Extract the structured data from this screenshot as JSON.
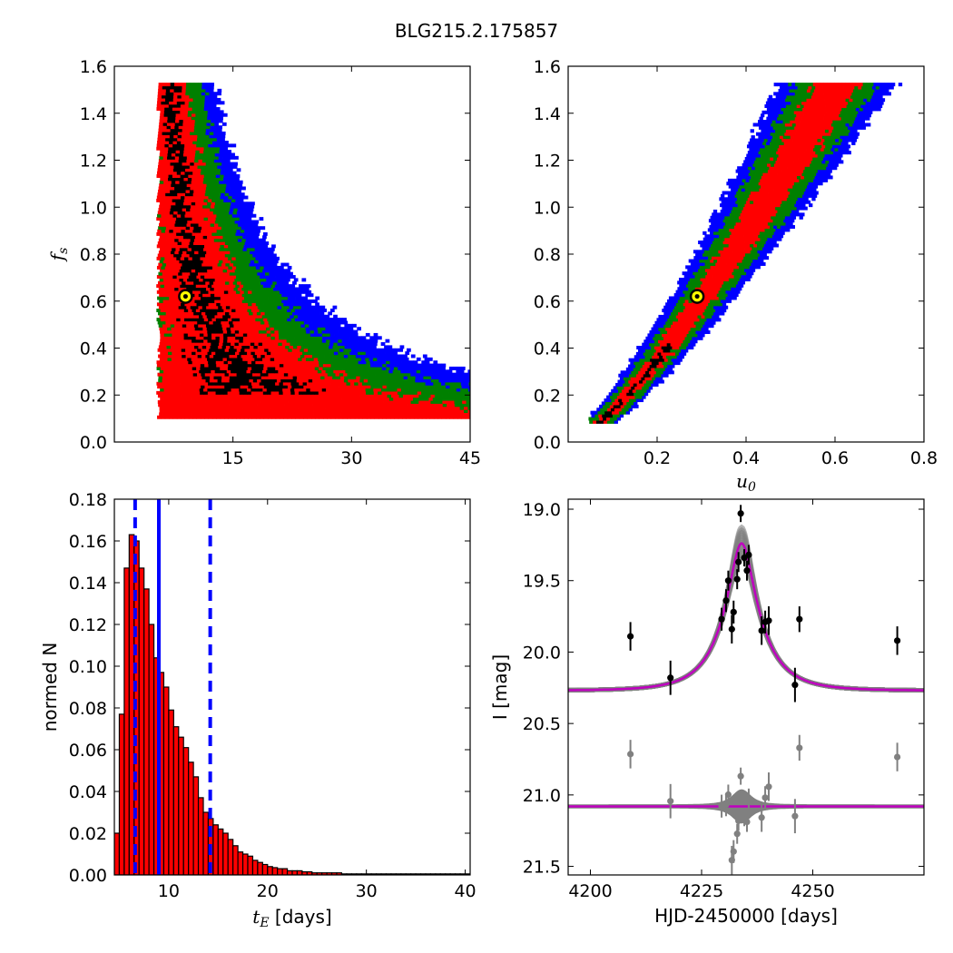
{
  "title": "BLG215.2.175857",
  "colors": {
    "sigma3": "#0000ff",
    "sigma2": "#008000",
    "sigma1": "#ff0000",
    "best": "#000000",
    "marker_fill": "#ffff00",
    "hist_bar": "#ff0000",
    "hist_edge": "#000000",
    "vline": "#0000ff",
    "data": "#000000",
    "resid": "#808080",
    "model_band": "#808080",
    "model_line": "#bf00bf"
  },
  "chart_data": [
    {
      "id": "tE_fs",
      "type": "heatmap",
      "xlabel": "",
      "ylabel": "f_s",
      "xlim": [
        0,
        45
      ],
      "ylim": [
        0,
        1.6
      ],
      "xticks": [
        15,
        30,
        45
      ],
      "yticks": [
        0.0,
        0.2,
        0.4,
        0.6,
        0.8,
        1.0,
        1.2,
        1.4,
        1.6
      ],
      "curve": "tE = 5.0 * fs^-0.5 (approx)",
      "fs_range": [
        0.1,
        1.53
      ],
      "best_fit": {
        "x": 9.0,
        "y": 0.62
      },
      "contour_levels": [
        "1-sigma",
        "2-sigma",
        "3-sigma"
      ]
    },
    {
      "id": "u0_fs",
      "type": "heatmap",
      "xlabel": "u_0",
      "ylabel": "",
      "xlim": [
        0,
        0.8
      ],
      "ylim": [
        0,
        1.6
      ],
      "xticks": [
        0.2,
        0.4,
        0.6,
        0.8
      ],
      "yticks": [
        0.0,
        0.2,
        0.4,
        0.6,
        0.8,
        1.0,
        1.2,
        1.4,
        1.6
      ],
      "fs_range": [
        0.08,
        1.53
      ],
      "u0_range": [
        0.05,
        0.63
      ],
      "best_fit": {
        "x": 0.29,
        "y": 0.62
      },
      "contour_levels": [
        "1-sigma",
        "2-sigma",
        "3-sigma"
      ]
    },
    {
      "id": "tE_hist",
      "type": "bar",
      "xlabel": "t_E  [days]",
      "ylabel": "normed N",
      "xlim": [
        4.5,
        40.5
      ],
      "ylim": [
        0,
        0.18
      ],
      "xticks": [
        10,
        20,
        30,
        40
      ],
      "yticks": [
        0.0,
        0.02,
        0.04,
        0.06,
        0.08,
        0.1,
        0.12,
        0.14,
        0.16,
        0.18
      ],
      "bin_start": 4.5,
      "bin_width": 0.5,
      "values": [
        0.02,
        0.077,
        0.147,
        0.163,
        0.16,
        0.147,
        0.137,
        0.12,
        0.104,
        0.097,
        0.09,
        0.079,
        0.071,
        0.066,
        0.061,
        0.054,
        0.047,
        0.037,
        0.03,
        0.027,
        0.024,
        0.022,
        0.02,
        0.017,
        0.014,
        0.011,
        0.01,
        0.009,
        0.007,
        0.006,
        0.005,
        0.004,
        0.0035,
        0.003,
        0.003,
        0.002,
        0.002,
        0.002,
        0.0015,
        0.0015,
        0.001,
        0.001,
        0.001,
        0.001,
        0.001,
        0.001,
        0.0005,
        0.0005,
        0.0005,
        0.0005,
        0.0005,
        0.0005,
        0.0005,
        0.0005,
        0.0005,
        0.0005,
        0.0005,
        0.0005,
        0.0005,
        0.0005,
        0.0005,
        0.0005,
        0.0005,
        0.0005,
        0.0005,
        0.0005,
        0.0005,
        0.0005,
        0.0005,
        0.0005,
        0.0005,
        0.0005
      ],
      "vlines": [
        {
          "x": 9.0,
          "style": "solid"
        },
        {
          "x": 6.6,
          "style": "dashed"
        },
        {
          "x": 14.2,
          "style": "dashed"
        }
      ]
    },
    {
      "id": "lightcurve",
      "type": "scatter",
      "xlabel": "HJD-2450000 [days]",
      "ylabel": "I [mag]",
      "xlim": [
        4195,
        4275
      ],
      "ylim": [
        21.56,
        18.93
      ],
      "xticks": [
        4200,
        4225,
        4250
      ],
      "yticks": [
        19.0,
        19.5,
        20.0,
        20.5,
        21.0,
        21.5
      ],
      "model": {
        "t0": 4234.0,
        "tE": 9.0,
        "u0": 0.29,
        "fs": 0.62,
        "baseline": 20.27
      },
      "resid_offset": 21.08,
      "points": [
        {
          "x": 4209.0,
          "y": 19.89,
          "err": 0.1
        },
        {
          "x": 4218.0,
          "y": 20.18,
          "err": 0.12
        },
        {
          "x": 4229.5,
          "y": 19.77,
          "err": 0.08
        },
        {
          "x": 4230.5,
          "y": 19.64,
          "err": 0.08
        },
        {
          "x": 4231.0,
          "y": 19.5,
          "err": 0.07
        },
        {
          "x": 4231.8,
          "y": 19.84,
          "err": 0.1
        },
        {
          "x": 4232.2,
          "y": 19.72,
          "err": 0.08
        },
        {
          "x": 4233.0,
          "y": 19.49,
          "err": 0.07
        },
        {
          "x": 4233.3,
          "y": 19.37,
          "err": 0.07
        },
        {
          "x": 4233.8,
          "y": 19.03,
          "err": 0.06
        },
        {
          "x": 4234.6,
          "y": 19.34,
          "err": 0.06
        },
        {
          "x": 4235.2,
          "y": 19.43,
          "err": 0.07
        },
        {
          "x": 4235.6,
          "y": 19.32,
          "err": 0.07
        },
        {
          "x": 4238.5,
          "y": 19.85,
          "err": 0.1
        },
        {
          "x": 4239.3,
          "y": 19.79,
          "err": 0.08
        },
        {
          "x": 4240.1,
          "y": 19.78,
          "err": 0.1
        },
        {
          "x": 4246.0,
          "y": 20.23,
          "err": 0.12
        },
        {
          "x": 4247.0,
          "y": 19.77,
          "err": 0.09
        },
        {
          "x": 4269.0,
          "y": 19.92,
          "err": 0.1
        }
      ]
    }
  ]
}
